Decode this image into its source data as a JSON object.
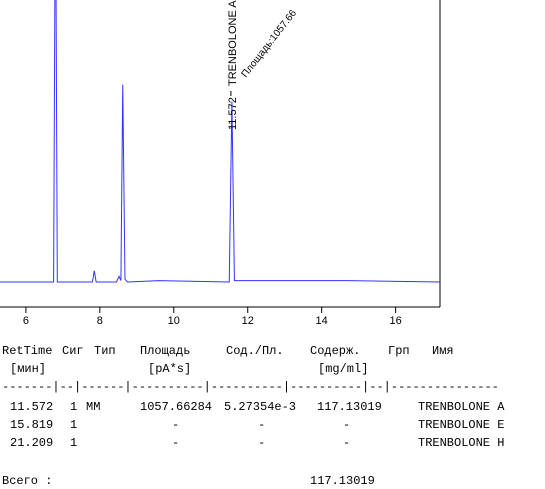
{
  "chart_data": {
    "type": "line",
    "x": [
      5.3,
      6.75,
      6.8,
      6.85,
      7.8,
      7.85,
      7.9,
      8.45,
      8.52,
      8.57,
      8.62,
      8.68,
      8.75,
      9.6,
      11.5,
      11.572,
      11.64,
      14.7,
      17.2
    ],
    "series": [
      {
        "color": "#3333ff",
        "values": [
          0,
          0,
          150,
          0,
          0,
          4,
          0,
          0,
          2,
          0.5,
          70,
          1,
          0,
          0.5,
          0,
          64,
          0.5,
          0.5,
          0
        ]
      }
    ],
    "xlim": [
      5.3,
      17.2
    ],
    "ylim": [
      0,
      100
    ],
    "xticks": [
      6,
      8,
      10,
      12,
      14,
      16
    ],
    "annotations": {
      "peak_time": "11.572",
      "peak_name": "TRENBOLONE A",
      "peak_area": "Площадь:1057.66"
    }
  },
  "report": {
    "header": [
      "RetTime",
      "Сиг",
      "Тип",
      "Площадь",
      "Сод./Пл.",
      "Содерж.",
      "Грп",
      "Имя"
    ],
    "units": [
      "[мин]",
      "[pA*s]",
      "[mg/ml]"
    ],
    "rule": "-------|--|------|----------|----------|----------|--|---------------",
    "rows": [
      [
        "11.572",
        "1",
        "MM",
        "1057.66284",
        "5.27354e-3",
        "117.13019",
        "TRENBOLONE A"
      ],
      [
        "15.819",
        "1",
        "-",
        "-",
        "-",
        "TRENBOLONE E"
      ],
      [
        "21.209",
        "1",
        "-",
        "-",
        "-",
        "TRENBOLONE H"
      ]
    ],
    "total_label": "Всего :",
    "total_value": "117.13019"
  }
}
